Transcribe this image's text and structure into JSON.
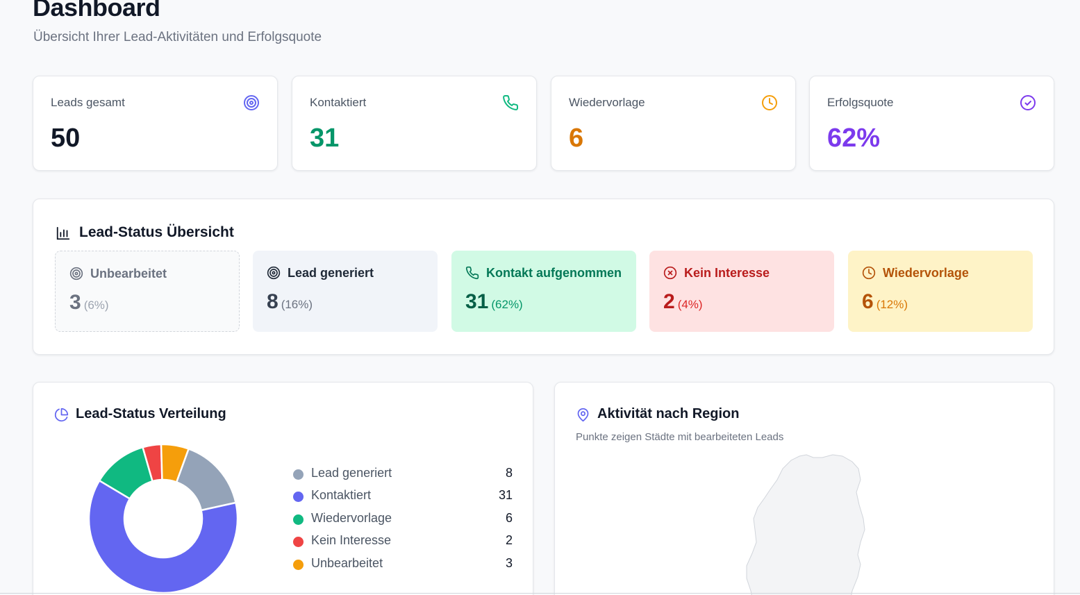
{
  "header": {
    "title": "Dashboard",
    "subtitle": "Übersicht Ihrer Lead-Aktivitäten und Erfolgsquote"
  },
  "stats": [
    {
      "label": "Leads gesamt",
      "value": "50",
      "icon": "target-icon",
      "color": "#111827",
      "icon_color": "#6366f1"
    },
    {
      "label": "Kontaktiert",
      "value": "31",
      "icon": "phone-icon",
      "color": "#059669",
      "icon_color": "#10b981"
    },
    {
      "label": "Wiedervorlage",
      "value": "6",
      "icon": "clock-icon",
      "color": "#d97706",
      "icon_color": "#f59e0b"
    },
    {
      "label": "Erfolgsquote",
      "value": "62%",
      "icon": "check-circle-icon",
      "color": "#7c3aed",
      "icon_color": "#7c3aed"
    }
  ],
  "status_overview": {
    "title": "Lead-Status Übersicht",
    "items": [
      {
        "label": "Unbearbeitet",
        "count": "3",
        "pct": "(6%)",
        "icon": "target-icon",
        "bg": "#f9fafb",
        "fg": "#6b7280",
        "count_color": "#6b7280",
        "pct_color": "#9ca3af"
      },
      {
        "label": "Lead generiert",
        "count": "8",
        "pct": "(16%)",
        "icon": "target-icon",
        "bg": "#f1f4f9",
        "fg": "#1f2937",
        "count_color": "#374151",
        "pct_color": "#6b7280"
      },
      {
        "label": "Kontakt aufgenommen",
        "count": "31",
        "pct": "(62%)",
        "icon": "phone-icon",
        "bg": "#d1fae5",
        "fg": "#047857",
        "count_color": "#065f46",
        "pct_color": "#059669"
      },
      {
        "label": "Kein Interesse",
        "count": "2",
        "pct": "(4%)",
        "icon": "x-circle-icon",
        "bg": "#fee2e2",
        "fg": "#b91c1c",
        "count_color": "#b91c1c",
        "pct_color": "#dc2626"
      },
      {
        "label": "Wiedervorlage",
        "count": "6",
        "pct": "(12%)",
        "icon": "clock-icon",
        "bg": "#fef3c7",
        "fg": "#b45309",
        "count_color": "#b45309",
        "pct_color": "#d97706"
      }
    ]
  },
  "distribution": {
    "title": "Lead-Status Verteilung",
    "chart_data": {
      "type": "pie",
      "categories": [
        "Lead generiert",
        "Kontaktiert",
        "Wiedervorlage",
        "Kein Interesse",
        "Unbearbeitet"
      ],
      "values": [
        8,
        31,
        6,
        2,
        3
      ],
      "colors": [
        "#94a3b8",
        "#6366f1",
        "#10b981",
        "#ef4444",
        "#f59e0b"
      ]
    }
  },
  "region": {
    "title": "Aktivität nach Region",
    "subtitle": "Punkte zeigen Städte mit bearbeiteten Leads"
  }
}
